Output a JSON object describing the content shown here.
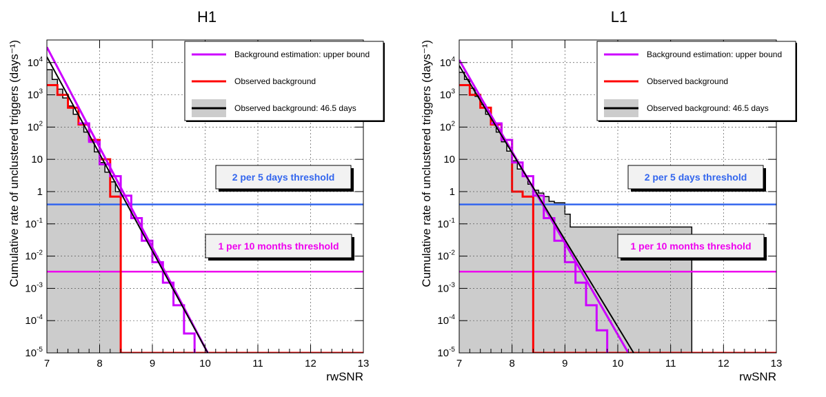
{
  "chart_data": [
    {
      "type": "line",
      "title": "H1",
      "xlabel": "rwSNR",
      "ylabel": "Cumulative rate of unclustered triggers (days⁻¹)",
      "xlim": [
        7,
        13
      ],
      "ylim_exponents": [
        -5,
        4.7
      ],
      "y_scale": "log",
      "grid": true,
      "x_ticks": [
        "7",
        "8",
        "9",
        "10",
        "11",
        "12",
        "13"
      ],
      "y_ticks": [
        {
          "base": "10",
          "exp": "-5",
          "value": 1e-05
        },
        {
          "base": "10",
          "exp": "-4",
          "value": 0.0001
        },
        {
          "base": "10",
          "exp": "-3",
          "value": 0.001
        },
        {
          "base": "10",
          "exp": "-2",
          "value": 0.01
        },
        {
          "base": "10",
          "exp": "-1",
          "value": 0.1
        },
        {
          "base": "1",
          "exp": "",
          "value": 1
        },
        {
          "base": "10",
          "exp": "",
          "value": 10
        },
        {
          "base": "10",
          "exp": "2",
          "value": 100
        },
        {
          "base": "10",
          "exp": "3",
          "value": 1000
        },
        {
          "base": "10",
          "exp": "4",
          "value": 10000
        }
      ],
      "legend": {
        "placement": "top-right",
        "entries": [
          {
            "label": "Background estimation: upper bound",
            "color": "#cc00ff",
            "style": "line"
          },
          {
            "label": "Observed background",
            "color": "#ff0000",
            "style": "line"
          },
          {
            "label": "Observed background: 46.5 days",
            "color": "#000000",
            "style": "fill-line",
            "fill": "#cccccc"
          }
        ]
      },
      "thresholds": [
        {
          "label": "2 per 5 days threshold",
          "value": 0.4,
          "color": "#3366ee"
        },
        {
          "label": "1 per 10 months threshold",
          "value": 0.0033,
          "color": "#ee00ee"
        }
      ],
      "series": [
        {
          "name": "Observed background: 46.5 days",
          "kind": "shaded-step",
          "color": "#000000",
          "fill": "#cccccc",
          "x": [
            7.0,
            7.1,
            7.2,
            7.3,
            7.4,
            7.5,
            7.6,
            7.7,
            7.8,
            7.9,
            8.0,
            8.1,
            8.2,
            8.3,
            8.4
          ],
          "y": [
            6000,
            3000,
            1500,
            800,
            450,
            250,
            130,
            70,
            35,
            17,
            8,
            4,
            2,
            1,
            0.7
          ],
          "end_x": 8.4
        },
        {
          "name": "Observed background",
          "kind": "step",
          "color": "#ff0000",
          "x": [
            7.0,
            7.2,
            7.4,
            7.6,
            7.8,
            8.0,
            8.2,
            8.4
          ],
          "y": [
            2000,
            1000,
            400,
            120,
            40,
            10,
            0.7,
            1e-05
          ],
          "end_x": 13.0
        },
        {
          "name": "Background estimation: upper bound",
          "kind": "line",
          "color": "#cc00ff",
          "x": [
            7.0,
            10.05
          ],
          "y": [
            30000,
            1e-05
          ]
        },
        {
          "name": "Background estimation: upper bound (bins)",
          "kind": "step",
          "color": "#cc00ff",
          "x": [
            7.6,
            7.8,
            8.0,
            8.2,
            8.4,
            8.6,
            8.8,
            9.0,
            9.2,
            9.4,
            9.6,
            9.8
          ],
          "y": [
            130,
            35,
            7,
            3,
            0.75,
            0.15,
            0.03,
            0.0065,
            0.0015,
            0.0003,
            4e-05,
            1e-05
          ],
          "end_x": 9.8
        },
        {
          "name": "Observed background fit",
          "kind": "line",
          "color": "#000000",
          "x": [
            7.0,
            10.05
          ],
          "y": [
            15000,
            1e-05
          ]
        }
      ]
    },
    {
      "type": "line",
      "title": "L1",
      "xlabel": "rwSNR",
      "ylabel": "Cumulative rate of unclustered triggers (days⁻¹)",
      "xlim": [
        7,
        13
      ],
      "ylim_exponents": [
        -5,
        4.7
      ],
      "y_scale": "log",
      "grid": true,
      "x_ticks": [
        "7",
        "8",
        "9",
        "10",
        "11",
        "12",
        "13"
      ],
      "y_ticks": [
        {
          "base": "10",
          "exp": "-5",
          "value": 1e-05
        },
        {
          "base": "10",
          "exp": "-4",
          "value": 0.0001
        },
        {
          "base": "10",
          "exp": "-3",
          "value": 0.001
        },
        {
          "base": "10",
          "exp": "-2",
          "value": 0.01
        },
        {
          "base": "10",
          "exp": "-1",
          "value": 0.1
        },
        {
          "base": "1",
          "exp": "",
          "value": 1
        },
        {
          "base": "10",
          "exp": "",
          "value": 10
        },
        {
          "base": "10",
          "exp": "2",
          "value": 100
        },
        {
          "base": "10",
          "exp": "3",
          "value": 1000
        },
        {
          "base": "10",
          "exp": "4",
          "value": 10000
        }
      ],
      "legend": {
        "placement": "top-right",
        "entries": [
          {
            "label": "Background estimation: upper bound",
            "color": "#cc00ff",
            "style": "line"
          },
          {
            "label": "Observed background",
            "color": "#ff0000",
            "style": "line"
          },
          {
            "label": "Observed background: 46.5 days",
            "color": "#000000",
            "style": "fill-line",
            "fill": "#cccccc"
          }
        ]
      },
      "thresholds": [
        {
          "label": "2 per 5 days threshold",
          "value": 0.4,
          "color": "#3366ee"
        },
        {
          "label": "1 per 10 months threshold",
          "value": 0.0033,
          "color": "#ee00ee"
        }
      ],
      "series": [
        {
          "name": "Observed background: 46.5 days",
          "kind": "shaded-step",
          "color": "#000000",
          "fill": "#cccccc",
          "x": [
            7.0,
            7.1,
            7.2,
            7.3,
            7.4,
            7.5,
            7.6,
            7.7,
            7.8,
            7.9,
            8.0,
            8.1,
            8.2,
            8.3,
            8.4,
            8.5,
            8.6,
            8.7,
            8.8,
            8.9,
            9.0,
            9.1,
            11.4
          ],
          "y": [
            5000,
            3000,
            1600,
            900,
            500,
            250,
            130,
            70,
            35,
            18,
            9,
            5,
            3,
            1.7,
            1.1,
            0.9,
            0.7,
            0.5,
            0.45,
            0.45,
            0.2,
            0.08,
            1e-05
          ],
          "end_x": 11.4
        },
        {
          "name": "Observed background",
          "kind": "step",
          "color": "#ff0000",
          "x": [
            7.0,
            7.2,
            7.4,
            7.6,
            7.8,
            8.0,
            8.2,
            8.4
          ],
          "y": [
            2000,
            1000,
            400,
            120,
            40,
            1,
            0.7,
            1e-05
          ],
          "end_x": 13.0
        },
        {
          "name": "Background estimation: upper bound",
          "kind": "line",
          "color": "#cc00ff",
          "x": [
            7.0,
            10.2
          ],
          "y": [
            12000,
            1e-05
          ]
        },
        {
          "name": "Background estimation: upper bound (bins)",
          "kind": "step",
          "color": "#cc00ff",
          "x": [
            7.6,
            7.8,
            8.0,
            8.2,
            8.4,
            8.6,
            8.8,
            9.0,
            9.2,
            9.4,
            9.6,
            9.8
          ],
          "y": [
            130,
            40,
            8,
            3,
            0.75,
            0.15,
            0.03,
            0.0065,
            0.0015,
            0.0003,
            5e-05,
            1e-05
          ],
          "end_x": 9.8
        },
        {
          "name": "Observed background fit",
          "kind": "line",
          "color": "#000000",
          "x": [
            7.0,
            10.3
          ],
          "y": [
            8000,
            1e-05
          ]
        }
      ]
    }
  ]
}
